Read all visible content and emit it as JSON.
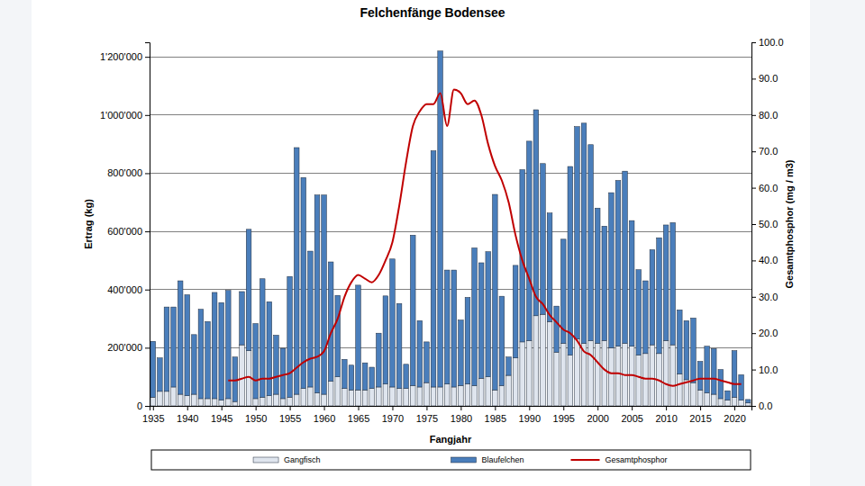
{
  "chart_data": {
    "type": "bar",
    "title": "Felchenfänge Bodensee",
    "x_label": "Fangjahr",
    "y_label": "Ertrag (kg)",
    "y2_label": "Gesamtphosphor (mg / m3)",
    "stacked": true,
    "grid": true,
    "legend": "bottom",
    "x": [
      1935,
      1936,
      1937,
      1938,
      1939,
      1940,
      1941,
      1942,
      1943,
      1944,
      1945,
      1946,
      1947,
      1948,
      1949,
      1950,
      1951,
      1952,
      1953,
      1954,
      1955,
      1956,
      1957,
      1958,
      1959,
      1960,
      1961,
      1962,
      1963,
      1964,
      1965,
      1966,
      1967,
      1968,
      1969,
      1970,
      1971,
      1972,
      1973,
      1974,
      1975,
      1976,
      1977,
      1978,
      1979,
      1980,
      1981,
      1982,
      1983,
      1984,
      1985,
      1986,
      1987,
      1988,
      1989,
      1990,
      1991,
      1992,
      1993,
      1994,
      1995,
      1996,
      1997,
      1998,
      1999,
      2000,
      2001,
      2002,
      2003,
      2004,
      2005,
      2006,
      2007,
      2008,
      2009,
      2010,
      2011,
      2012,
      2013,
      2014,
      2015,
      2016,
      2017,
      2018,
      2019,
      2020,
      2021,
      2022
    ],
    "xlim": [
      1934.5,
      2022.5
    ],
    "xticks": [
      1935,
      1940,
      1945,
      1950,
      1955,
      1960,
      1965,
      1970,
      1975,
      1980,
      1985,
      1990,
      1995,
      2000,
      2005,
      2010,
      2015,
      2020
    ],
    "ylim": [
      0,
      1250000
    ],
    "yticks": [
      0,
      {
        "value": 200000,
        "label": "200'000"
      },
      {
        "value": 400000,
        "label": "400'000"
      },
      {
        "value": 600000,
        "label": "600'000"
      },
      {
        "value": 800000,
        "label": "800'000"
      },
      {
        "value": 1000000,
        "label": "1'000'000"
      },
      {
        "value": 1200000,
        "label": "1'200'000"
      }
    ],
    "y2lim": [
      0,
      100
    ],
    "y2ticks": [
      {
        "value": 0,
        "label": "0.0"
      },
      {
        "value": 10,
        "label": "10.0"
      },
      {
        "value": 20,
        "label": "20.0"
      },
      {
        "value": 30,
        "label": "30.0"
      },
      {
        "value": 40,
        "label": "40.0"
      },
      {
        "value": 50,
        "label": "50.0"
      },
      {
        "value": 60,
        "label": "60.0"
      },
      {
        "value": 70,
        "label": "70.0"
      },
      {
        "value": 80,
        "label": "80.0"
      },
      {
        "value": 90,
        "label": "90.0"
      },
      {
        "value": 100,
        "label": "100.0"
      }
    ],
    "series": [
      {
        "name": "Gangfisch",
        "type": "bar",
        "color": "#dfe5ee",
        "values": [
          30000,
          50000,
          50000,
          65000,
          40000,
          35000,
          40000,
          25000,
          25000,
          25000,
          20000,
          25000,
          15000,
          210000,
          190000,
          25000,
          30000,
          35000,
          40000,
          25000,
          30000,
          40000,
          60000,
          65000,
          45000,
          40000,
          85000,
          100000,
          60000,
          55000,
          55000,
          55000,
          60000,
          65000,
          75000,
          65000,
          60000,
          60000,
          70000,
          65000,
          80000,
          65000,
          65000,
          75000,
          65000,
          70000,
          75000,
          70000,
          95000,
          100000,
          55000,
          70000,
          105000,
          165000,
          220000,
          225000,
          310000,
          315000,
          290000,
          185000,
          215000,
          175000,
          230000,
          215000,
          225000,
          215000,
          225000,
          200000,
          205000,
          215000,
          205000,
          175000,
          180000,
          210000,
          180000,
          225000,
          210000,
          110000,
          90000,
          80000,
          55000,
          45000,
          40000,
          25000,
          20000,
          30000,
          20000,
          10000
        ]
      },
      {
        "name": "Blaufelchen",
        "type": "bar",
        "color": "#4a7ebb",
        "values": [
          192000,
          115000,
          290000,
          275000,
          390000,
          347000,
          205000,
          307000,
          265000,
          365000,
          335000,
          372000,
          153000,
          183000,
          417000,
          258000,
          407000,
          323000,
          203000,
          173000,
          415000,
          848000,
          725000,
          467000,
          680000,
          685000,
          410000,
          280000,
          100000,
          85000,
          360000,
          93000,
          73000,
          185000,
          303000,
          440000,
          292000,
          83000,
          517000,
          228000,
          140000,
          812000,
          1155000,
          392000,
          402000,
          225000,
          298000,
          473000,
          397000,
          430000,
          672000,
          307000,
          63000,
          318000,
          592000,
          685000,
          708000,
          518000,
          373000,
          158000,
          358000,
          648000,
          730000,
          757000,
          673000,
          465000,
          393000,
          533000,
          570000,
          592000,
          432000,
          293000,
          250000,
          327000,
          398000,
          397000,
          420000,
          220000,
          203000,
          222000,
          98000,
          160000,
          157000,
          100000,
          32000,
          160000,
          87000,
          12000
        ]
      },
      {
        "name": "Gesamtphosphor",
        "type": "line",
        "axis": "y2",
        "color": "#c00000",
        "values": [
          null,
          null,
          null,
          null,
          null,
          null,
          null,
          null,
          null,
          null,
          null,
          7,
          7,
          7.5,
          8,
          7,
          7.5,
          7.5,
          8,
          8.5,
          9,
          10.5,
          12,
          13,
          13.5,
          15,
          20,
          24,
          30,
          34,
          36,
          35,
          34,
          36,
          40,
          45,
          55,
          67,
          77,
          81,
          83,
          83,
          86,
          77,
          87,
          86,
          83,
          84,
          80,
          72,
          66,
          62,
          56,
          47,
          40,
          35,
          30,
          28,
          25,
          23,
          21,
          20,
          18,
          15,
          14,
          12,
          10,
          9,
          9,
          8.5,
          8.5,
          8,
          7.5,
          7.5,
          7,
          6,
          5.5,
          6,
          6.5,
          7,
          7.5,
          7.5,
          7.5,
          7,
          6.5,
          6,
          6,
          null
        ]
      }
    ]
  }
}
